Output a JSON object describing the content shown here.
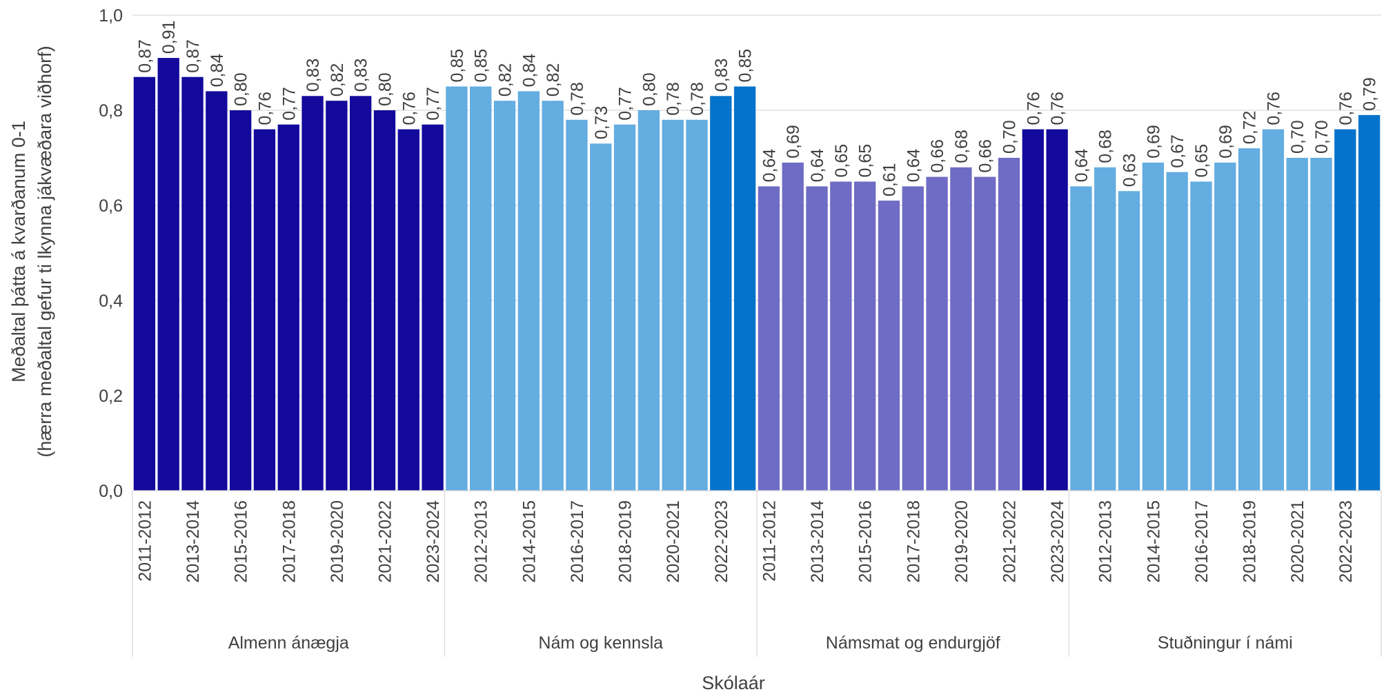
{
  "chart_data": {
    "type": "grouped-bar",
    "x_label": "Skólaár",
    "y_label": [
      "Meðaltal þátta á kvarðanum 0-1",
      "(hærra meðaltal gefur ti lkynna jákvæðara viðhorf)"
    ],
    "ylim": [
      0,
      1
    ],
    "yticks": [
      {
        "value": 0,
        "label": "0,0"
      },
      {
        "value": 0.2,
        "label": "0,2"
      },
      {
        "value": 0.4,
        "label": "0,4"
      },
      {
        "value": 0.6,
        "label": "0,6"
      },
      {
        "value": 0.8,
        "label": "0,8"
      },
      {
        "value": 1,
        "label": "1,0"
      }
    ],
    "grid": true,
    "groups": [
      {
        "name": "Almenn ánægja",
        "categories": [
          "2011-2012",
          null,
          "2013-2014",
          null,
          "2015-2016",
          null,
          "2017-2018",
          null,
          "2019-2020",
          null,
          "2021-2022",
          null,
          "2023-2024"
        ],
        "values": [
          0.87,
          0.91,
          0.87,
          0.84,
          0.8,
          0.76,
          0.77,
          0.83,
          0.82,
          0.83,
          0.8,
          0.76,
          0.77
        ],
        "value_labels": [
          "0,87",
          "0,91",
          "0,87",
          "0,84",
          "0,80",
          "0,76",
          "0,77",
          "0,83",
          "0,82",
          "0,83",
          "0,80",
          "0,76",
          "0,77"
        ],
        "colors": [
          "#13099b",
          "#13099b",
          "#13099b",
          "#13099b",
          "#13099b",
          "#13099b",
          "#13099b",
          "#13099b",
          "#13099b",
          "#13099b",
          "#13099b",
          "#13099b",
          "#13099b"
        ]
      },
      {
        "name": "Nám og kennsla",
        "categories": [
          null,
          "2012-2013",
          null,
          "2014-2015",
          null,
          "2016-2017",
          null,
          "2018-2019",
          null,
          "2020-2021",
          null,
          "2022-2023",
          null
        ],
        "values": [
          0.85,
          0.85,
          0.82,
          0.84,
          0.82,
          0.78,
          0.73,
          0.77,
          0.8,
          0.78,
          0.78,
          0.83,
          0.85
        ],
        "value_labels": [
          "0,85",
          "0,85",
          "0,82",
          "0,84",
          "0,82",
          "0,78",
          "0,73",
          "0,77",
          "0,80",
          "0,78",
          "0,78",
          "0,83",
          "0,85"
        ],
        "colors": [
          "#63ade1",
          "#63ade1",
          "#63ade1",
          "#63ade1",
          "#63ade1",
          "#63ade1",
          "#63ade1",
          "#63ade1",
          "#63ade1",
          "#63ade1",
          "#63ade1",
          "#0473cb",
          "#0473cb"
        ]
      },
      {
        "name": "Námsmat og endurgjöf",
        "categories": [
          "2011-2012",
          null,
          "2013-2014",
          null,
          "2015-2016",
          null,
          "2017-2018",
          null,
          "2019-2020",
          null,
          "2021-2022",
          null,
          "2023-2024"
        ],
        "values": [
          0.64,
          0.69,
          0.64,
          0.65,
          0.65,
          0.61,
          0.64,
          0.66,
          0.68,
          0.66,
          0.7,
          0.76,
          0.76
        ],
        "value_labels": [
          "0,64",
          "0,69",
          "0,64",
          "0,65",
          "0,65",
          "0,61",
          "0,64",
          "0,66",
          "0,68",
          "0,66",
          "0,70",
          "0,76",
          "0,76"
        ],
        "colors": [
          "#6f6cc5",
          "#6f6cc5",
          "#6f6cc5",
          "#6f6cc5",
          "#6f6cc5",
          "#6f6cc5",
          "#6f6cc5",
          "#6f6cc5",
          "#6f6cc5",
          "#6f6cc5",
          "#6f6cc5",
          "#13099b",
          "#13099b"
        ]
      },
      {
        "name": "Stuðningur í námi",
        "categories": [
          null,
          "2012-2013",
          null,
          "2014-2015",
          null,
          "2016-2017",
          null,
          "2018-2019",
          null,
          "2020-2021",
          null,
          "2022-2023",
          null
        ],
        "values": [
          0.64,
          0.68,
          0.63,
          0.69,
          0.67,
          0.65,
          0.69,
          0.72,
          0.76,
          0.7,
          0.7,
          0.76,
          0.79
        ],
        "value_labels": [
          "0,64",
          "0,68",
          "0,63",
          "0,69",
          "0,67",
          "0,65",
          "0,69",
          "0,72",
          "0,76",
          "0,70",
          "0,70",
          "0,76",
          "0,79"
        ],
        "colors": [
          "#63ade1",
          "#63ade1",
          "#63ade1",
          "#63ade1",
          "#63ade1",
          "#63ade1",
          "#63ade1",
          "#63ade1",
          "#63ade1",
          "#63ade1",
          "#63ade1",
          "#0473cb",
          "#0473cb"
        ]
      }
    ]
  }
}
